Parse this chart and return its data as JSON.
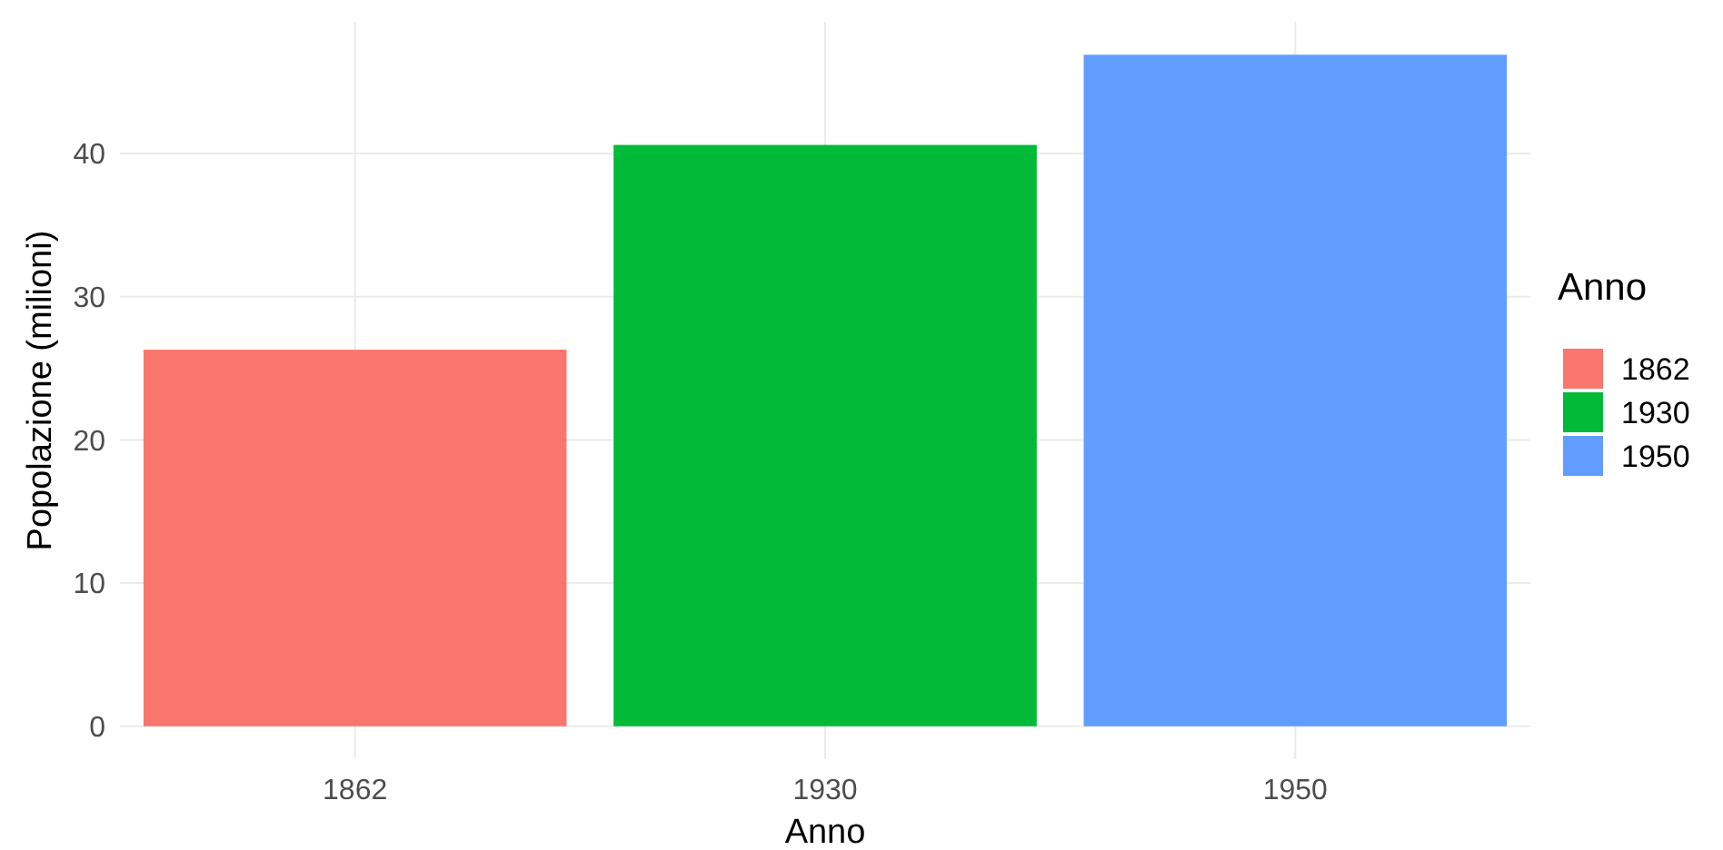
{
  "chart_data": {
    "type": "bar",
    "xlabel": "Anno",
    "ylabel": "Popolazione (milioni)",
    "legend_title": "Anno",
    "stacked": true,
    "categories": [
      "1862",
      "1930",
      "1950"
    ],
    "series": [
      {
        "name": "1862",
        "color": "#f8766d",
        "values": [
          26.3,
          null,
          null
        ]
      },
      {
        "name": "1930",
        "color": "#00ba38",
        "values": [
          null,
          40.6,
          null
        ]
      },
      {
        "name": "1950",
        "color": "#619cff",
        "values": [
          null,
          null,
          46.9
        ]
      }
    ],
    "ylim": [
      -2.3,
      49.2
    ],
    "yticks": [
      0,
      10,
      20,
      30,
      40
    ],
    "grid": true,
    "legend": "right"
  }
}
